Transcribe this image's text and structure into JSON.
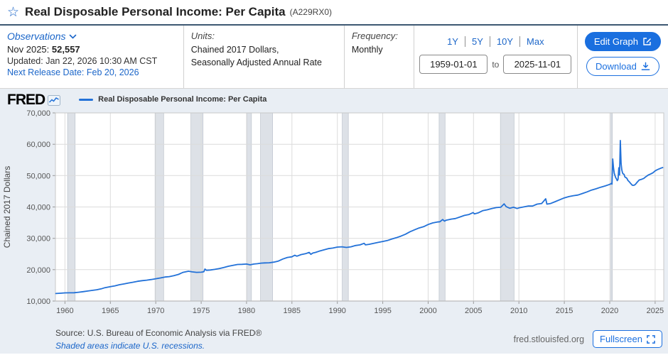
{
  "header": {
    "title": "Real Disposable Personal Income: Per Capita",
    "series_id": "(A229RX0)"
  },
  "meta": {
    "observations": {
      "label": "Observations",
      "latest_label": "Nov 2025:",
      "latest_value": "52,557",
      "updated": "Updated: Jan 22, 2026 10:30 AM CST",
      "next_release": "Next Release Date: Feb 20, 2026"
    },
    "units": {
      "label": "Units:",
      "line1": "Chained 2017 Dollars,",
      "line2": "Seasonally Adjusted Annual Rate"
    },
    "frequency": {
      "label": "Frequency:",
      "value": "Monthly"
    },
    "range": {
      "presets": [
        "1Y",
        "5Y",
        "10Y",
        "Max"
      ],
      "start": "1959-01-01",
      "to_label": "to",
      "end": "2025-11-01"
    },
    "actions": {
      "edit": "Edit Graph",
      "download": "Download"
    }
  },
  "chart": {
    "brand": "FRED",
    "legend": "Real Disposable Personal Income: Per Capita",
    "source": "Source: U.S. Bureau of Economic Analysis via FRED®",
    "recession_note": "Shaded areas indicate U.S. recessions.",
    "site_url": "fred.stlouisfed.org",
    "fullscreen_label": "Fullscreen"
  },
  "colors": {
    "line": "#2271d8",
    "accent_link": "#1b66c9",
    "button_blue": "#1a6fdf",
    "chart_bg": "#e9eef4",
    "plot_bg": "#ffffff",
    "grid": "#dcdcdc",
    "recession_band": "#dde1e7",
    "recession_edge": "#bfc6cf",
    "title_border": "#3d5872"
  },
  "chart_data": {
    "type": "line",
    "title": "Real Disposable Personal Income: Per Capita",
    "xlabel": "",
    "ylabel": "Chained 2017 Dollars",
    "units": "Chained 2017 Dollars, Seasonally Adjusted Annual Rate",
    "frequency": "Monthly",
    "xlim": [
      1958.95,
      2025.95
    ],
    "ylim": [
      10000,
      70000
    ],
    "grid": true,
    "legend_position": "top-left",
    "x_ticks": [
      {
        "v": 1960,
        "label": "1960"
      },
      {
        "v": 1965,
        "label": "1965"
      },
      {
        "v": 1970,
        "label": "1970"
      },
      {
        "v": 1975,
        "label": "1975"
      },
      {
        "v": 1980,
        "label": "1980"
      },
      {
        "v": 1985,
        "label": "1985"
      },
      {
        "v": 1990,
        "label": "1990"
      },
      {
        "v": 1995,
        "label": "1995"
      },
      {
        "v": 2000,
        "label": "2000"
      },
      {
        "v": 2005,
        "label": "2005"
      },
      {
        "v": 2010,
        "label": "2010"
      },
      {
        "v": 2015,
        "label": "2015"
      },
      {
        "v": 2020,
        "label": "2020"
      },
      {
        "v": 2025,
        "label": "2025"
      }
    ],
    "y_ticks": [
      {
        "v": 10000,
        "label": "10,000"
      },
      {
        "v": 20000,
        "label": "20,000"
      },
      {
        "v": 30000,
        "label": "30,000"
      },
      {
        "v": 40000,
        "label": "40,000"
      },
      {
        "v": 50000,
        "label": "50,000"
      },
      {
        "v": 60000,
        "label": "60,000"
      },
      {
        "v": 70000,
        "label": "70,000"
      }
    ],
    "recessions": [
      [
        1960.29,
        1961.12
      ],
      [
        1969.92,
        1970.87
      ],
      [
        1973.87,
        1975.21
      ],
      [
        1980.04,
        1980.54
      ],
      [
        1981.54,
        1982.87
      ],
      [
        1990.54,
        1991.21
      ],
      [
        2001.21,
        2001.87
      ],
      [
        2007.96,
        2009.46
      ],
      [
        2020.12,
        2020.29
      ]
    ],
    "series": [
      {
        "name": "Real Disposable Personal Income: Per Capita",
        "color": "#2271d8",
        "points": [
          [
            1959.0,
            12400
          ],
          [
            1959.5,
            12500
          ],
          [
            1960.0,
            12600
          ],
          [
            1960.5,
            12620
          ],
          [
            1961.0,
            12650
          ],
          [
            1961.5,
            12800
          ],
          [
            1962.0,
            13000
          ],
          [
            1962.5,
            13200
          ],
          [
            1963.0,
            13400
          ],
          [
            1963.5,
            13600
          ],
          [
            1964.0,
            13900
          ],
          [
            1964.4,
            14250
          ],
          [
            1965.0,
            14600
          ],
          [
            1965.5,
            14850
          ],
          [
            1966.0,
            15200
          ],
          [
            1966.5,
            15450
          ],
          [
            1967.0,
            15750
          ],
          [
            1967.5,
            16000
          ],
          [
            1968.0,
            16300
          ],
          [
            1968.5,
            16500
          ],
          [
            1969.0,
            16650
          ],
          [
            1969.5,
            16850
          ],
          [
            1970.0,
            17100
          ],
          [
            1970.5,
            17350
          ],
          [
            1971.0,
            17650
          ],
          [
            1971.5,
            17800
          ],
          [
            1972.0,
            18100
          ],
          [
            1972.5,
            18500
          ],
          [
            1973.0,
            19150
          ],
          [
            1973.6,
            19500
          ],
          [
            1974.0,
            19300
          ],
          [
            1974.5,
            19150
          ],
          [
            1975.0,
            19200
          ],
          [
            1975.3,
            19350
          ],
          [
            1975.42,
            20200
          ],
          [
            1975.58,
            19800
          ],
          [
            1976.0,
            19900
          ],
          [
            1976.5,
            20100
          ],
          [
            1977.0,
            20350
          ],
          [
            1977.5,
            20700
          ],
          [
            1978.0,
            21100
          ],
          [
            1978.5,
            21400
          ],
          [
            1979.0,
            21650
          ],
          [
            1979.5,
            21700
          ],
          [
            1980.0,
            21800
          ],
          [
            1980.4,
            21550
          ],
          [
            1980.8,
            21800
          ],
          [
            1981.2,
            21900
          ],
          [
            1981.6,
            22100
          ],
          [
            1982.0,
            22150
          ],
          [
            1982.5,
            22200
          ],
          [
            1983.0,
            22400
          ],
          [
            1983.5,
            22750
          ],
          [
            1984.0,
            23400
          ],
          [
            1984.5,
            23900
          ],
          [
            1985.0,
            24100
          ],
          [
            1985.3,
            24600
          ],
          [
            1985.55,
            24300
          ],
          [
            1986.0,
            24800
          ],
          [
            1986.5,
            25100
          ],
          [
            1986.9,
            25500
          ],
          [
            1987.08,
            24900
          ],
          [
            1987.3,
            25300
          ],
          [
            1987.6,
            25500
          ],
          [
            1988.0,
            25900
          ],
          [
            1988.5,
            26300
          ],
          [
            1989.0,
            26700
          ],
          [
            1989.5,
            26900
          ],
          [
            1990.0,
            27200
          ],
          [
            1990.5,
            27300
          ],
          [
            1991.0,
            27100
          ],
          [
            1991.5,
            27300
          ],
          [
            1992.0,
            27700
          ],
          [
            1992.5,
            27900
          ],
          [
            1992.95,
            28400
          ],
          [
            1993.1,
            27900
          ],
          [
            1993.5,
            28100
          ],
          [
            1994.0,
            28400
          ],
          [
            1994.5,
            28700
          ],
          [
            1995.0,
            29000
          ],
          [
            1995.5,
            29300
          ],
          [
            1996.0,
            29800
          ],
          [
            1996.5,
            30200
          ],
          [
            1997.0,
            30700
          ],
          [
            1997.5,
            31300
          ],
          [
            1998.0,
            32100
          ],
          [
            1998.5,
            32700
          ],
          [
            1999.0,
            33300
          ],
          [
            1999.5,
            33700
          ],
          [
            2000.0,
            34400
          ],
          [
            2000.5,
            34900
          ],
          [
            2001.0,
            35200
          ],
          [
            2001.3,
            35300
          ],
          [
            2001.6,
            36000
          ],
          [
            2001.8,
            35500
          ],
          [
            2002.0,
            35800
          ],
          [
            2002.5,
            36100
          ],
          [
            2003.0,
            36300
          ],
          [
            2003.5,
            36800
          ],
          [
            2004.0,
            37300
          ],
          [
            2004.5,
            37600
          ],
          [
            2004.95,
            38200
          ],
          [
            2005.1,
            37800
          ],
          [
            2005.5,
            38100
          ],
          [
            2006.0,
            38800
          ],
          [
            2006.5,
            39100
          ],
          [
            2007.0,
            39500
          ],
          [
            2007.5,
            39800
          ],
          [
            2008.0,
            39900
          ],
          [
            2008.37,
            41000
          ],
          [
            2008.6,
            40100
          ],
          [
            2009.0,
            39600
          ],
          [
            2009.4,
            39900
          ],
          [
            2009.8,
            39500
          ],
          [
            2010.0,
            39700
          ],
          [
            2010.5,
            40000
          ],
          [
            2011.0,
            40300
          ],
          [
            2011.5,
            40300
          ],
          [
            2012.0,
            40900
          ],
          [
            2012.5,
            41100
          ],
          [
            2012.95,
            42600
          ],
          [
            2013.08,
            40900
          ],
          [
            2013.5,
            41100
          ],
          [
            2014.0,
            41700
          ],
          [
            2014.5,
            42300
          ],
          [
            2015.0,
            42900
          ],
          [
            2015.5,
            43300
          ],
          [
            2016.0,
            43600
          ],
          [
            2016.5,
            43800
          ],
          [
            2017.0,
            44300
          ],
          [
            2017.5,
            44800
          ],
          [
            2018.0,
            45400
          ],
          [
            2018.5,
            45800
          ],
          [
            2019.0,
            46300
          ],
          [
            2019.5,
            46700
          ],
          [
            2020.0,
            47200
          ],
          [
            2020.17,
            47500
          ],
          [
            2020.25,
            47300
          ],
          [
            2020.33,
            55300
          ],
          [
            2020.42,
            52500
          ],
          [
            2020.5,
            50700
          ],
          [
            2020.58,
            50000
          ],
          [
            2020.67,
            49300
          ],
          [
            2020.75,
            48900
          ],
          [
            2020.83,
            48400
          ],
          [
            2020.92,
            48800
          ],
          [
            2021.0,
            52500
          ],
          [
            2021.08,
            50200
          ],
          [
            2021.17,
            61200
          ],
          [
            2021.25,
            53800
          ],
          [
            2021.33,
            51800
          ],
          [
            2021.42,
            50800
          ],
          [
            2021.5,
            50500
          ],
          [
            2021.58,
            50400
          ],
          [
            2021.67,
            49600
          ],
          [
            2021.75,
            49400
          ],
          [
            2021.83,
            49300
          ],
          [
            2021.92,
            49000
          ],
          [
            2022.0,
            48500
          ],
          [
            2022.17,
            48000
          ],
          [
            2022.33,
            47400
          ],
          [
            2022.5,
            46900
          ],
          [
            2022.67,
            46900
          ],
          [
            2022.83,
            47200
          ],
          [
            2023.0,
            47800
          ],
          [
            2023.25,
            48600
          ],
          [
            2023.5,
            48800
          ],
          [
            2023.75,
            49100
          ],
          [
            2024.0,
            49700
          ],
          [
            2024.25,
            50200
          ],
          [
            2024.5,
            50500
          ],
          [
            2024.75,
            50900
          ],
          [
            2025.0,
            51500
          ],
          [
            2025.25,
            51900
          ],
          [
            2025.5,
            52200
          ],
          [
            2025.67,
            52400
          ],
          [
            2025.83,
            52557
          ]
        ]
      }
    ],
    "note": "Shaded areas indicate U.S. recessions."
  }
}
